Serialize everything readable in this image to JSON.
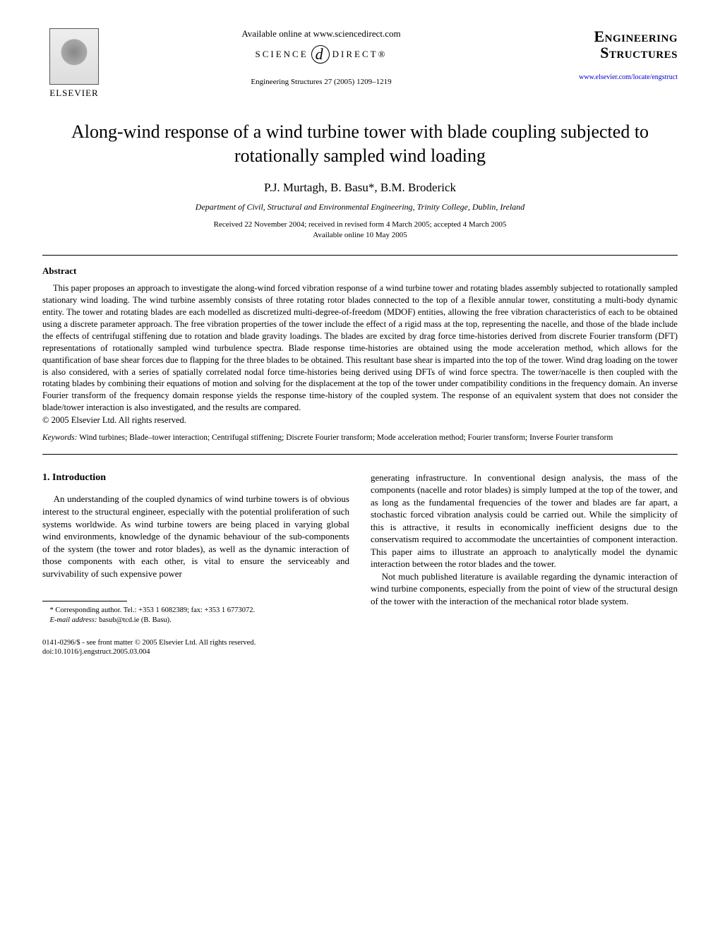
{
  "header": {
    "publisher_name": "ELSEVIER",
    "available_online": "Available online at www.sciencedirect.com",
    "sciencedirect_left": "SCIENCE",
    "sciencedirect_d": "d",
    "sciencedirect_right": "DIRECT®",
    "citation": "Engineering Structures 27 (2005) 1209–1219",
    "journal_line1": "Engineering",
    "journal_line2": "Structures",
    "journal_url": "www.elsevier.com/locate/engstruct"
  },
  "paper": {
    "title": "Along-wind response of a wind turbine tower with blade coupling subjected to rotationally sampled wind loading",
    "authors": "P.J. Murtagh, B. Basu*, B.M. Broderick",
    "affiliation": "Department of Civil, Structural and Environmental Engineering, Trinity College, Dublin, Ireland",
    "dates_line1": "Received 22 November 2004; received in revised form 4 March 2005; accepted 4 March 2005",
    "dates_line2": "Available online 10 May 2005"
  },
  "abstract": {
    "heading": "Abstract",
    "text": "This paper proposes an approach to investigate the along-wind forced vibration response of a wind turbine tower and rotating blades assembly subjected to rotationally sampled stationary wind loading. The wind turbine assembly consists of three rotating rotor blades connected to the top of a flexible annular tower, constituting a multi-body dynamic entity. The tower and rotating blades are each modelled as discretized multi-degree-of-freedom (MDOF) entities, allowing the free vibration characteristics of each to be obtained using a discrete parameter approach. The free vibration properties of the tower include the effect of a rigid mass at the top, representing the nacelle, and those of the blade include the effects of centrifugal stiffening due to rotation and blade gravity loadings. The blades are excited by drag force time-histories derived from discrete Fourier transform (DFT) representations of rotationally sampled wind turbulence spectra. Blade response time-histories are obtained using the mode acceleration method, which allows for the quantification of base shear forces due to flapping for the three blades to be obtained. This resultant base shear is imparted into the top of the tower. Wind drag loading on the tower is also considered, with a series of spatially correlated nodal force time-histories being derived using DFTs of wind force spectra. The tower/nacelle is then coupled with the rotating blades by combining their equations of motion and solving for the displacement at the top of the tower under compatibility conditions in the frequency domain. An inverse Fourier transform of the frequency domain response yields the response time-history of the coupled system. The response of an equivalent system that does not consider the blade/tower interaction is also investigated, and the results are compared.",
    "copyright": "© 2005 Elsevier Ltd. All rights reserved.",
    "keywords_label": "Keywords:",
    "keywords_text": " Wind turbines; Blade–tower interaction; Centrifugal stiffening; Discrete Fourier transform; Mode acceleration method; Fourier transform; Inverse Fourier transform"
  },
  "body": {
    "section_heading": "1. Introduction",
    "col1_p1": "An understanding of the coupled dynamics of wind turbine towers is of obvious interest to the structural engineer, especially with the potential proliferation of such systems worldwide. As wind turbine towers are being placed in varying global wind environments, knowledge of the dynamic behaviour of the sub-components of the system (the tower and rotor blades), as well as the dynamic interaction of those components with each other, is vital to ensure the serviceably and survivability of such expensive power",
    "col2_p1": "generating infrastructure. In conventional design analysis, the mass of the components (nacelle and rotor blades) is simply lumped at the top of the tower, and as long as the fundamental frequencies of the tower and blades are far apart, a stochastic forced vibration analysis could be carried out. While the simplicity of this is attractive, it results in economically inefficient designs due to the conservatism required to accommodate the uncertainties of component interaction. This paper aims to illustrate an approach to analytically model the dynamic interaction between the rotor blades and the tower.",
    "col2_p2": "Not much published literature is available regarding the dynamic interaction of wind turbine components, especially from the point of view of the structural design of the tower with the interaction of the mechanical rotor blade system."
  },
  "footnote": {
    "corr": "* Corresponding author. Tel.: +353 1 6082389; fax: +353 1 6773072.",
    "email_label": "E-mail address:",
    "email_value": " basub@tcd.ie (B. Basu)."
  },
  "footer": {
    "line1": "0141-0296/$ - see front matter © 2005 Elsevier Ltd. All rights reserved.",
    "line2": "doi:10.1016/j.engstruct.2005.03.004"
  }
}
